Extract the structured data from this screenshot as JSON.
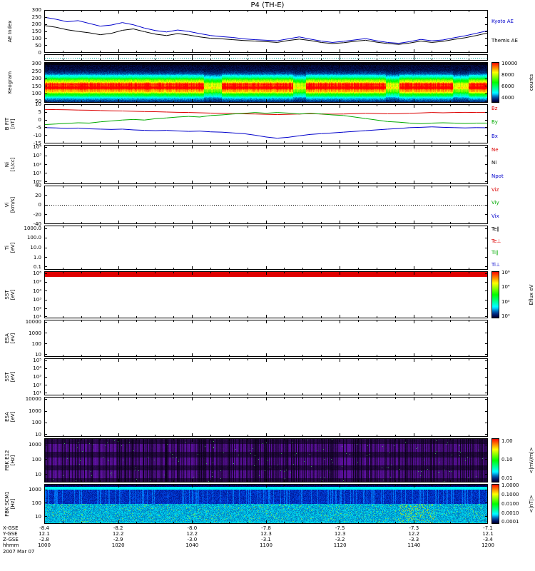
{
  "title": "P4 (TH-E)",
  "date_label": "2007 Mar 07",
  "time_axis": {
    "label": "hhmm",
    "ticks": [
      "1000",
      "1020",
      "1040",
      "1100",
      "1120",
      "1140",
      "1200"
    ]
  },
  "position_rows": [
    {
      "label": "X-GSE",
      "values": [
        "-8.4",
        "-8.2",
        "-8.0",
        "-7.8",
        "-7.5",
        "-7.3",
        "-7.1"
      ]
    },
    {
      "label": "Y-GSE",
      "values": [
        "12.1",
        "12.2",
        "12.2",
        "12.3",
        "12.3",
        "12.2",
        "12.1"
      ]
    },
    {
      "label": "Z-GSE",
      "values": [
        "-2.8",
        "-2.9",
        "-3.0",
        "-3.1",
        "-3.2",
        "-3.3",
        "-3.4"
      ]
    }
  ],
  "chart_data": {
    "type": "multi-panel-timeseries",
    "x_start": "1000",
    "x_end": "1200",
    "x_tick_labels": [
      "1000",
      "1020",
      "1040",
      "1100",
      "1120",
      "1140",
      "1200"
    ],
    "panels": [
      {
        "id": "ae",
        "type": "line",
        "ylabel": "AE Index",
        "yrange": [
          0,
          300
        ],
        "yticks": [
          {
            "f": 0.0,
            "t": "300"
          },
          {
            "f": 0.167,
            "t": "250"
          },
          {
            "f": 0.333,
            "t": "200"
          },
          {
            "f": 0.5,
            "t": "150"
          },
          {
            "f": 0.667,
            "t": "100"
          },
          {
            "f": 0.833,
            "t": "50"
          },
          {
            "f": 1.0,
            "t": "0"
          }
        ],
        "right_labels": [
          {
            "t": "Kyoto AE",
            "c": "#0000cc",
            "f": 0.26
          },
          {
            "t": "Themis AE",
            "c": "#000000",
            "f": 0.72
          }
        ],
        "series": [
          {
            "name": "Kyoto AE",
            "color": "#0000cc",
            "values": [
              252,
              238,
              220,
              228,
              208,
              188,
              196,
              214,
              198,
              174,
              156,
              146,
              160,
              150,
              134,
              120,
              112,
              106,
              96,
              90,
              86,
              82,
              96,
              110,
              94,
              80,
              70,
              78,
              88,
              98,
              82,
              70,
              64,
              76,
              92,
              82,
              88,
              104,
              118,
              136,
              154
            ]
          },
          {
            "name": "Themis AE",
            "color": "#000000",
            "values": [
              192,
              180,
              162,
              150,
              140,
              126,
              136,
              158,
              168,
              148,
              130,
              120,
              134,
              124,
              110,
              100,
              96,
              90,
              84,
              80,
              76,
              70,
              84,
              94,
              84,
              70,
              62,
              68,
              78,
              86,
              72,
              62,
              56,
              66,
              80,
              70,
              78,
              92,
              104,
              120,
              138
            ]
          }
        ]
      },
      {
        "id": "strip",
        "type": "dotted",
        "line_color": "#00aa99",
        "line_frac": 0.5
      },
      {
        "id": "keogram",
        "type": "keogram",
        "ylabel": "Keogram",
        "yticks": [
          {
            "f": 0.04,
            "t": "300"
          },
          {
            "f": 0.22,
            "t": "250"
          },
          {
            "f": 0.41,
            "t": "200"
          },
          {
            "f": 0.59,
            "t": "150"
          },
          {
            "f": 0.78,
            "t": "100"
          },
          {
            "f": 0.96,
            "t": "50"
          }
        ],
        "hot_regions": [
          [
            0.0,
            0.36
          ],
          [
            0.4,
            0.56
          ],
          [
            0.59,
            0.77
          ],
          [
            0.8,
            0.92
          ],
          [
            0.955,
            1.0
          ]
        ],
        "colorbar": {
          "unit": "counts",
          "ticks": [
            {
              "f": 0.03,
              "t": "10000"
            },
            {
              "f": 0.31,
              "t": "8000"
            },
            {
              "f": 0.6,
              "t": "6000"
            },
            {
              "f": 0.88,
              "t": "4000"
            }
          ]
        }
      },
      {
        "id": "bfit",
        "type": "line",
        "ylabel": "B FIT",
        "ylabel2": "[nT]",
        "yrange": [
          -15,
          10
        ],
        "yticks": [
          {
            "f": 0.0,
            "t": "10"
          },
          {
            "f": 0.2,
            "t": "5"
          },
          {
            "f": 0.4,
            "t": "0"
          },
          {
            "f": 0.6,
            "t": "-5"
          },
          {
            "f": 0.8,
            "t": "-10"
          },
          {
            "f": 1.0,
            "t": "-15"
          }
        ],
        "right_labels": [
          {
            "t": "Bz",
            "c": "#dd0000",
            "f": 0.1
          },
          {
            "t": "By",
            "c": "#00aa00",
            "f": 0.45
          },
          {
            "t": "Bx",
            "c": "#0000cc",
            "f": 0.82
          }
        ],
        "series": [
          {
            "name": "Bz",
            "color": "#dd0000",
            "values": [
              7.0,
              6.9,
              6.8,
              6.6,
              6.5,
              6.3,
              6.1,
              6.0,
              5.8,
              5.6,
              5.5,
              5.3,
              5.1,
              5.0,
              4.8,
              4.6,
              4.5,
              4.3,
              4.1,
              4.0,
              3.8,
              3.6,
              3.8,
              4.0,
              4.2,
              4.0,
              3.9,
              4.0,
              4.2,
              4.5,
              4.3,
              4.1,
              4.2,
              4.5,
              4.7,
              5.0,
              4.8,
              5.0,
              5.1,
              5.0,
              5.0
            ]
          },
          {
            "name": "By",
            "color": "#00aa00",
            "values": [
              -3.0,
              -2.6,
              -2.2,
              -1.8,
              -2.0,
              -1.2,
              -0.6,
              0.0,
              0.4,
              0.0,
              0.9,
              1.4,
              2.0,
              2.4,
              2.0,
              3.0,
              3.4,
              4.0,
              4.4,
              5.0,
              4.5,
              5.0,
              4.6,
              4.0,
              4.4,
              4.0,
              3.4,
              3.0,
              2.0,
              1.0,
              0.0,
              -1.0,
              -1.4,
              -2.0,
              -2.4,
              -2.0,
              -1.8,
              -2.0,
              -2.2,
              -2.0,
              -2.0
            ]
          },
          {
            "name": "Bx",
            "color": "#0000cc",
            "values": [
              -5.0,
              -5.2,
              -5.5,
              -5.3,
              -5.8,
              -6.0,
              -6.2,
              -6.0,
              -6.5,
              -6.8,
              -7.0,
              -6.8,
              -7.2,
              -7.5,
              -7.3,
              -7.8,
              -8.0,
              -8.5,
              -9.0,
              -10.0,
              -11.2,
              -12.0,
              -11.4,
              -10.4,
              -9.5,
              -9.0,
              -8.5,
              -8.0,
              -7.5,
              -7.0,
              -6.5,
              -6.0,
              -5.6,
              -5.0,
              -4.8,
              -4.5,
              -4.8,
              -5.0,
              -5.2,
              -5.0,
              -5.1
            ]
          }
        ]
      },
      {
        "id": "n",
        "type": "empty",
        "ylabel": "Ni",
        "ylabel2": "[1/cc]",
        "yticks": [
          {
            "f": 0.05,
            "t": "10⁴"
          },
          {
            "f": 0.275,
            "t": "10³"
          },
          {
            "f": 0.5,
            "t": "10²"
          },
          {
            "f": 0.725,
            "t": "10¹"
          },
          {
            "f": 0.95,
            "t": "10⁰"
          }
        ],
        "right_labels": [
          {
            "t": "Ne",
            "c": "#dd0000",
            "f": 0.12
          },
          {
            "t": "Ni",
            "c": "#000000",
            "f": 0.45
          },
          {
            "t": "Npot",
            "c": "#0000cc",
            "f": 0.8
          }
        ]
      },
      {
        "id": "vi",
        "type": "dotted-zero",
        "ylabel": "Vi",
        "ylabel2": "[km/s]",
        "yrange": [
          -40,
          40
        ],
        "yticks": [
          {
            "f": 0.0,
            "t": "40"
          },
          {
            "f": 0.25,
            "t": "20"
          },
          {
            "f": 0.5,
            "t": "0"
          },
          {
            "f": 0.75,
            "t": "-20"
          },
          {
            "f": 1.0,
            "t": "-40"
          }
        ],
        "right_labels": [
          {
            "t": "Viz",
            "c": "#dd0000",
            "f": 0.12
          },
          {
            "t": "Viy",
            "c": "#00aa00",
            "f": 0.45
          },
          {
            "t": "Vix",
            "c": "#0000cc",
            "f": 0.8
          }
        ]
      },
      {
        "id": "t",
        "type": "empty",
        "ylabel": "Ti",
        "ylabel2": "[eV]",
        "yticks": [
          {
            "f": 0.06,
            "t": "1000.0"
          },
          {
            "f": 0.28,
            "t": "100.0"
          },
          {
            "f": 0.5,
            "t": "10.0"
          },
          {
            "f": 0.72,
            "t": "1.0"
          },
          {
            "f": 0.94,
            "t": "0.1"
          }
        ],
        "right_labels": [
          {
            "t": "Te∥",
            "c": "#000000",
            "f": 0.08
          },
          {
            "t": "Te⊥",
            "c": "#dd0000",
            "f": 0.36
          },
          {
            "t": "Ti∥",
            "c": "#00aa00",
            "f": 0.62
          },
          {
            "t": "Ti⊥",
            "c": "#0000cc",
            "f": 0.88
          }
        ]
      },
      {
        "id": "sst_e",
        "type": "redbar",
        "ylabel": "SST",
        "ylabel2": "[eV]",
        "yticks": [
          {
            "f": 0.04,
            "t": "10⁶"
          },
          {
            "f": 0.23,
            "t": "10⁵"
          },
          {
            "f": 0.42,
            "t": "10⁴"
          },
          {
            "f": 0.61,
            "t": "10³"
          },
          {
            "f": 0.8,
            "t": "10²"
          },
          {
            "f": 0.97,
            "t": "10¹"
          }
        ],
        "colorbar": {
          "unit": "Eflux eV",
          "ticks": [
            {
              "f": 0.03,
              "t": "10⁶"
            },
            {
              "f": 0.34,
              "t": "10⁴"
            },
            {
              "f": 0.65,
              "t": "10²"
            },
            {
              "f": 0.95,
              "t": "10⁰"
            }
          ]
        }
      },
      {
        "id": "esa_e",
        "type": "empty",
        "ylabel": "ESA",
        "ylabel2": "[eV]",
        "yticks": [
          {
            "f": 0.06,
            "t": "10000"
          },
          {
            "f": 0.36,
            "t": "1000"
          },
          {
            "f": 0.65,
            "t": "100"
          },
          {
            "f": 0.94,
            "t": "10"
          }
        ]
      },
      {
        "id": "sst_i",
        "type": "empty",
        "ylabel": "SST",
        "ylabel2": "[eV]",
        "yticks": [
          {
            "f": 0.05,
            "t": "10⁵"
          },
          {
            "f": 0.275,
            "t": "10⁴"
          },
          {
            "f": 0.5,
            "t": "10³"
          },
          {
            "f": 0.725,
            "t": "10²"
          },
          {
            "f": 0.95,
            "t": "10¹"
          }
        ]
      },
      {
        "id": "esa_i",
        "type": "empty",
        "ylabel": "ESA",
        "ylabel2": "[eV]",
        "yticks": [
          {
            "f": 0.06,
            "t": "10000"
          },
          {
            "f": 0.36,
            "t": "1000"
          },
          {
            "f": 0.65,
            "t": "100"
          },
          {
            "f": 0.94,
            "t": "10"
          }
        ]
      },
      {
        "id": "fbk_e",
        "type": "fbk-e",
        "ylabel": "FBK E12",
        "ylabel2": "[Hz]",
        "yticks": [
          {
            "f": 0.14,
            "t": "1000"
          },
          {
            "f": 0.48,
            "t": "100"
          },
          {
            "f": 0.82,
            "t": "10"
          }
        ],
        "colorbar": {
          "unit": "<|mV/m|>",
          "ticks": [
            {
              "f": 0.06,
              "t": "1.00"
            },
            {
              "f": 0.48,
              "t": "0.10"
            },
            {
              "f": 0.9,
              "t": "0.01"
            }
          ]
        }
      },
      {
        "id": "fbk_b",
        "type": "fbk-b",
        "ylabel": "FBK SCM1",
        "ylabel2": "[Hz]",
        "yticks": [
          {
            "f": 0.14,
            "t": "1000"
          },
          {
            "f": 0.48,
            "t": "100"
          },
          {
            "f": 0.82,
            "t": "10"
          }
        ],
        "colorbar": {
          "unit": "<|nT|>",
          "ticks": [
            {
              "f": 0.04,
              "t": "1.0000"
            },
            {
              "f": 0.27,
              "t": "0.1000"
            },
            {
              "f": 0.5,
              "t": "0.0100"
            },
            {
              "f": 0.73,
              "t": "0.0010"
            },
            {
              "f": 0.95,
              "t": "0.0001"
            }
          ]
        }
      }
    ]
  }
}
